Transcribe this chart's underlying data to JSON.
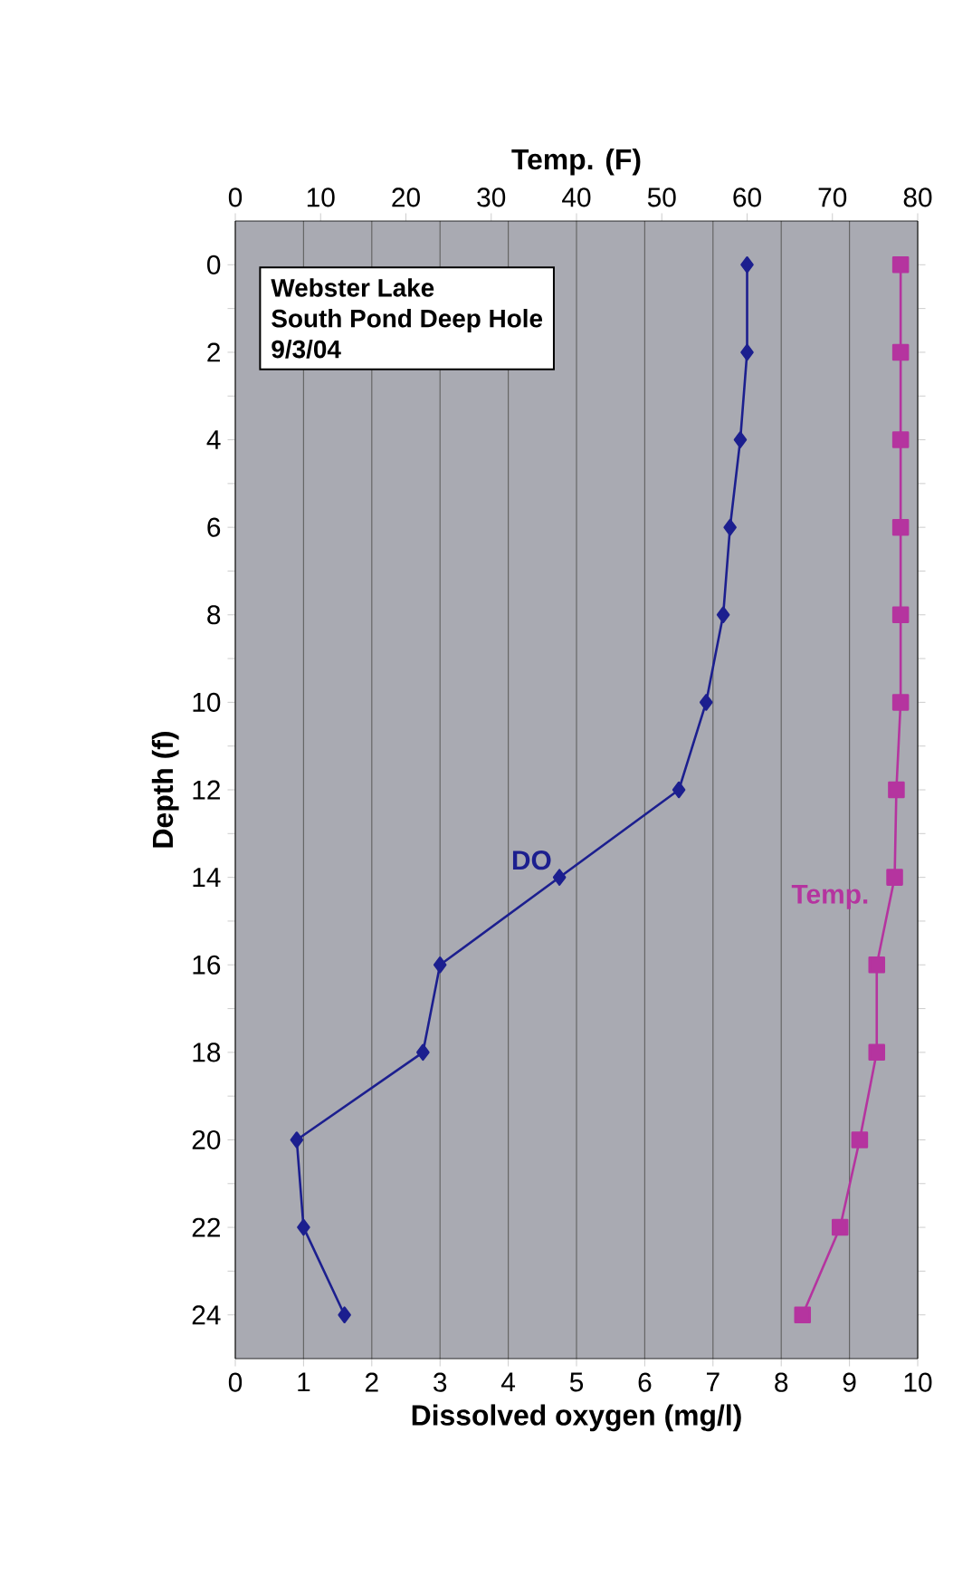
{
  "chart_data": {
    "type": "line",
    "orientation": "horizontal",
    "x": [
      0,
      2,
      4,
      6,
      8,
      10,
      12,
      14,
      16,
      18,
      20,
      22,
      24
    ],
    "series": [
      {
        "name": "DO",
        "color": "#1c1f8f",
        "marker": "diamond",
        "values": [
          7.5,
          7.5,
          7.4,
          7.25,
          7.15,
          6.9,
          6.5,
          4.75,
          3.0,
          2.75,
          0.9,
          1.0,
          1.6
        ]
      },
      {
        "name": "Temp.",
        "color": "#b5349f",
        "marker": "square",
        "axis": "x2",
        "values": [
          78,
          78,
          78,
          78,
          78,
          78,
          77.5,
          77.3,
          75.2,
          75.2,
          73.2,
          70.9,
          66.5
        ]
      }
    ],
    "xlabel": "Dissolved oxygen (mg/l)",
    "x2label": "Temp. (F)",
    "ylabel": "Depth (f)",
    "xlim": [
      0,
      10
    ],
    "xticks": [
      0,
      1,
      2,
      3,
      4,
      5,
      6,
      7,
      8,
      9,
      10
    ],
    "x2lim": [
      0,
      80
    ],
    "x2ticks": [
      0,
      10,
      20,
      30,
      40,
      50,
      60,
      70,
      80
    ],
    "ylim": [
      25,
      -1
    ],
    "yticks": [
      0,
      {
        "value": 1,
        "label": null
      },
      2,
      {
        "value": 3,
        "label": null
      },
      4,
      {
        "value": 5,
        "label": null
      },
      6,
      {
        "value": 7,
        "label": null
      },
      8,
      {
        "value": 9,
        "label": null
      },
      10,
      {
        "value": 11,
        "label": null
      },
      12,
      {
        "value": 13,
        "label": null
      },
      14,
      {
        "value": 15,
        "label": null
      },
      16,
      {
        "value": 17,
        "label": null
      },
      18,
      {
        "value": 19,
        "label": null
      },
      20,
      {
        "value": 21,
        "label": null
      },
      22,
      {
        "value": 23,
        "label": null
      },
      24
    ],
    "grid": "x",
    "annotations": [
      "Webster Lake",
      "South Pond Deep Hole",
      "9/3/04"
    ]
  }
}
